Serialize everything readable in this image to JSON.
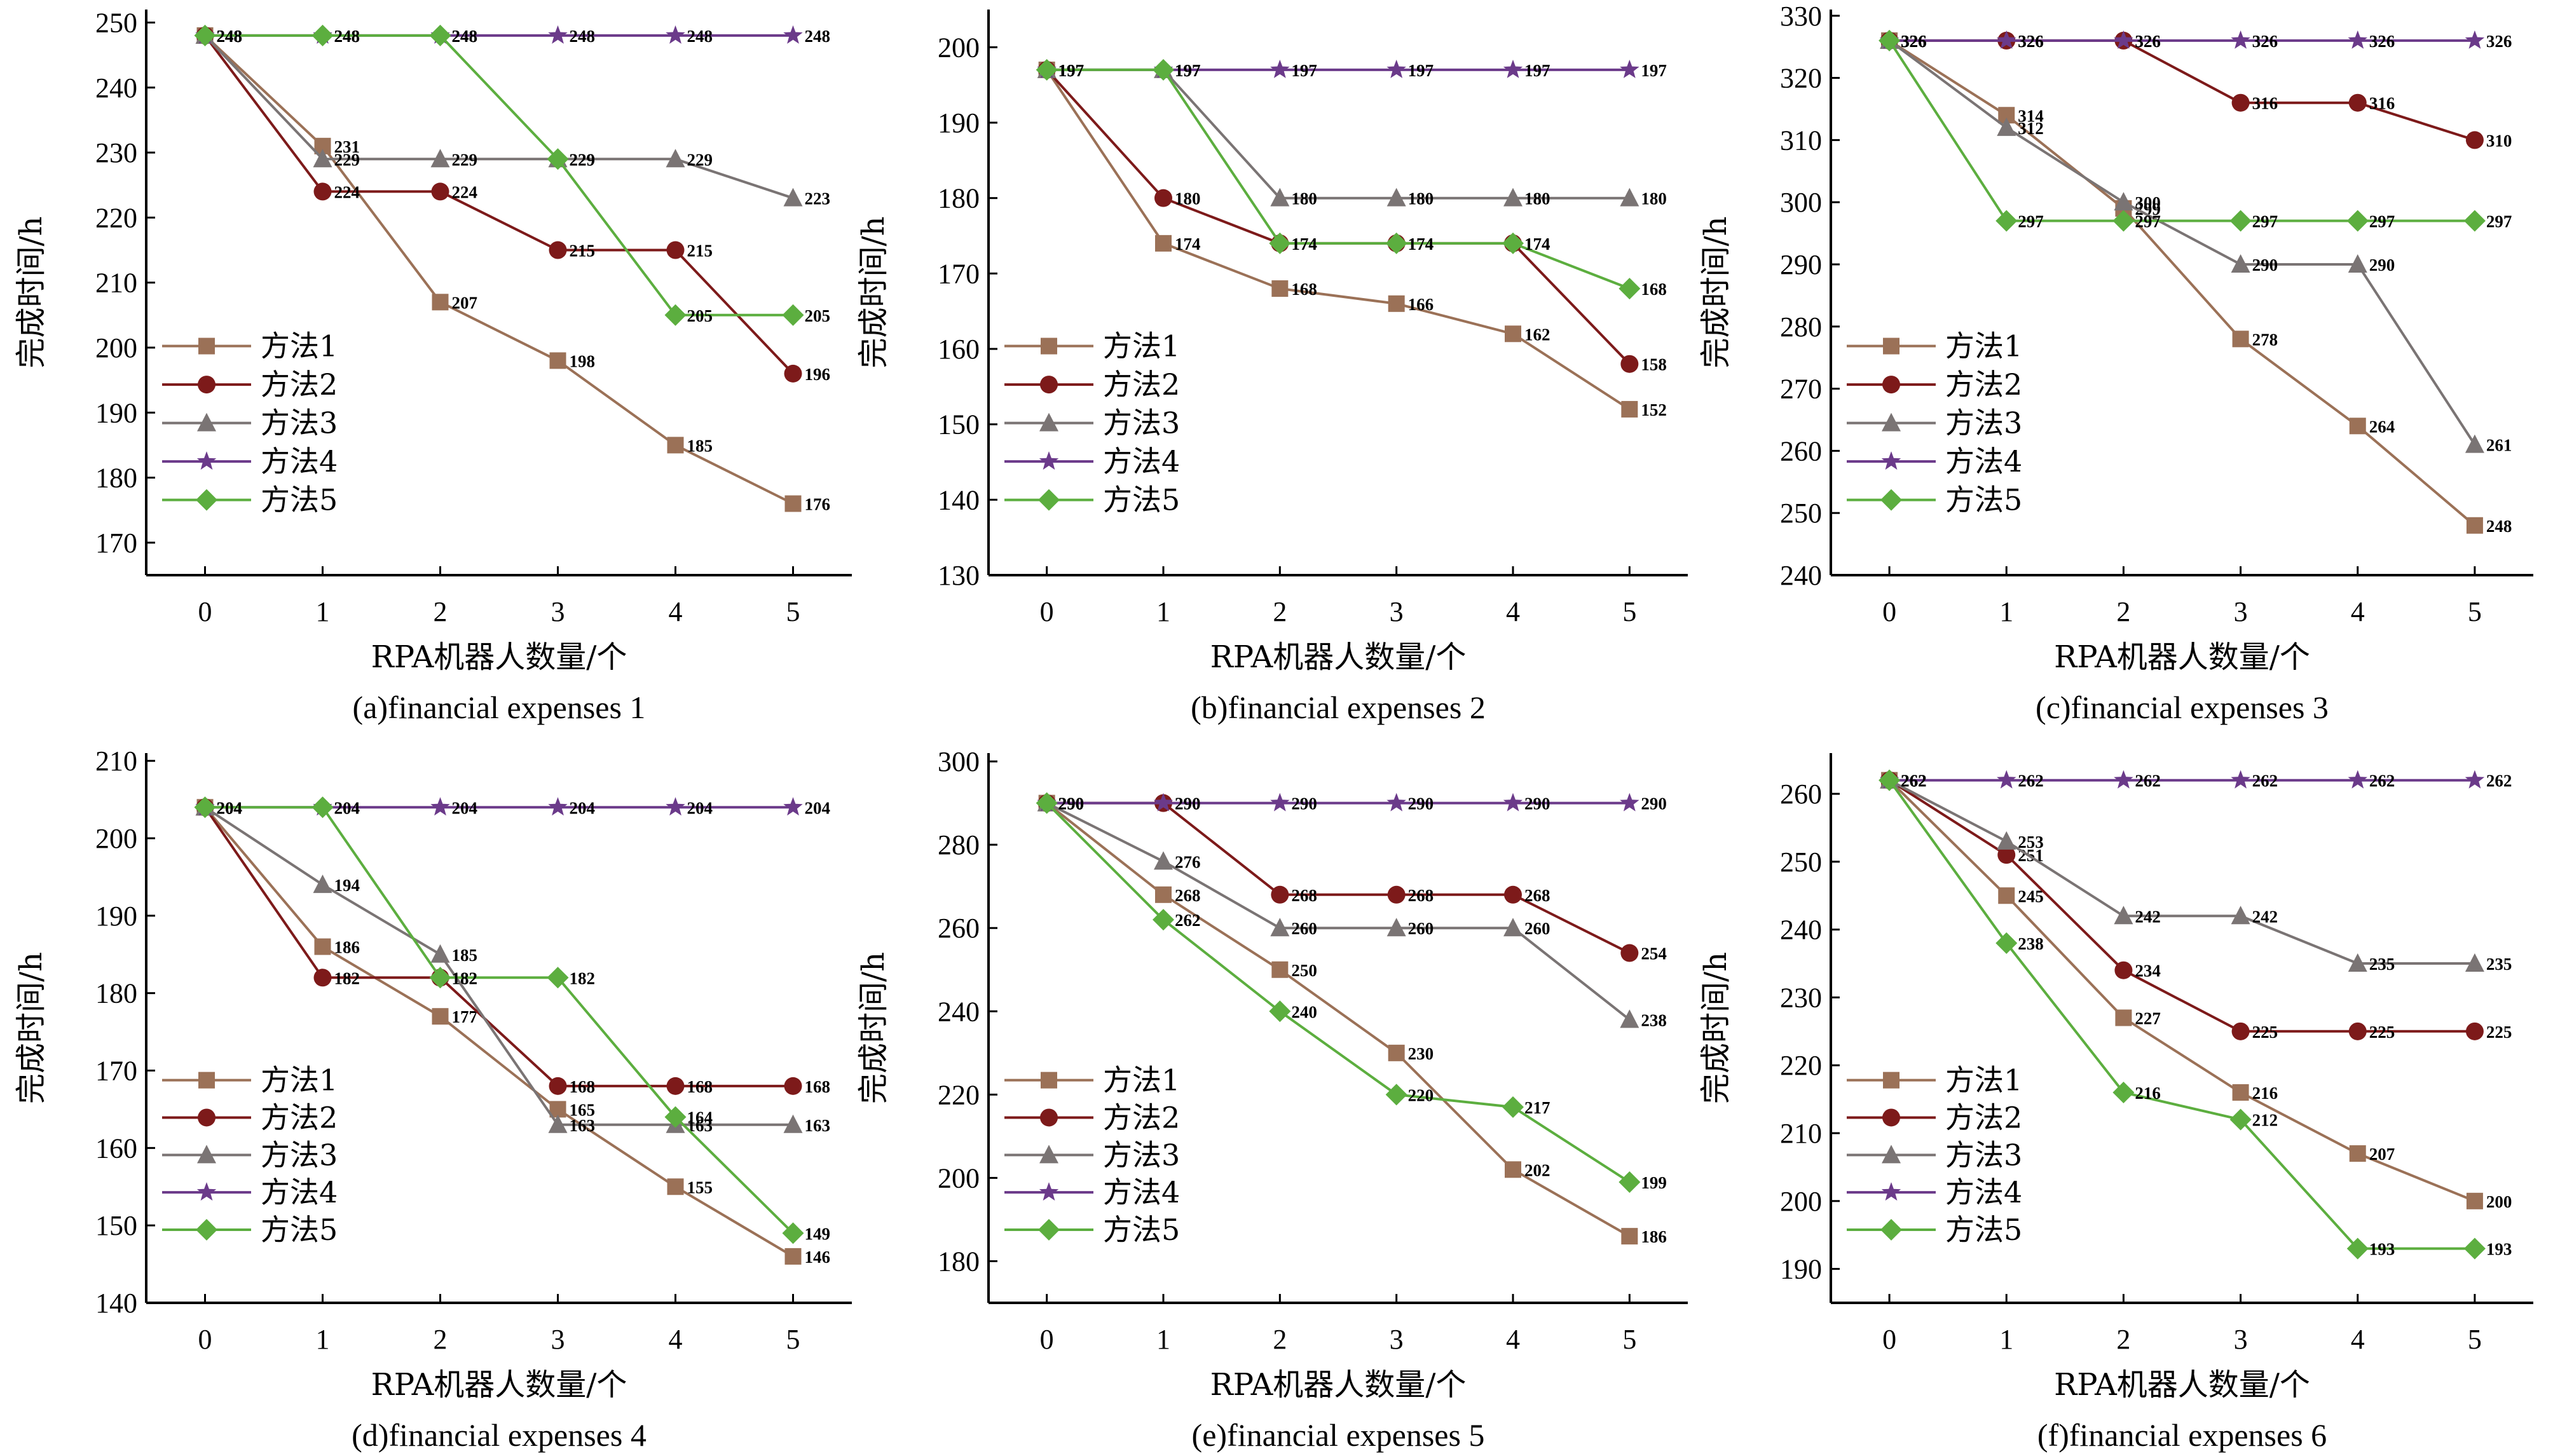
{
  "colors": {
    "method1": "#9b7157",
    "method2": "#7d1a1a",
    "method3": "#7a7474",
    "method4": "#6b3a8a",
    "method5": "#5cae3f"
  },
  "legend_labels": [
    "方法1",
    "方法2",
    "方法3",
    "方法4",
    "方法5"
  ],
  "marker_icons": [
    "square-marker",
    "circle-marker",
    "triangle-marker",
    "star-marker",
    "diamond-marker"
  ],
  "chart_data": [
    {
      "type": "line",
      "caption": "(a)financial expenses 1",
      "xlabel": "RPA机器人数量/个",
      "ylabel": "完成时间/h",
      "x": [
        0,
        1,
        2,
        3,
        4,
        5
      ],
      "ylim": [
        165,
        252
      ],
      "yticks": [
        170,
        180,
        190,
        200,
        210,
        220,
        230,
        240,
        250
      ],
      "legend_position": "bottom-left",
      "series": [
        {
          "name": "方法1",
          "values": [
            248,
            231,
            207,
            198,
            185,
            176
          ]
        },
        {
          "name": "方法2",
          "values": [
            248,
            224,
            224,
            215,
            215,
            196
          ]
        },
        {
          "name": "方法3",
          "values": [
            248,
            229,
            229,
            229,
            229,
            223
          ]
        },
        {
          "name": "方法4",
          "values": [
            248,
            248,
            248,
            248,
            248,
            248
          ]
        },
        {
          "name": "方法5",
          "values": [
            248,
            248,
            248,
            229,
            205,
            205
          ]
        }
      ]
    },
    {
      "type": "line",
      "caption": "(b)financial expenses 2",
      "xlabel": "RPA机器人数量/个",
      "ylabel": "完成时间/h",
      "x": [
        0,
        1,
        2,
        3,
        4,
        5
      ],
      "ylim": [
        130,
        205
      ],
      "yticks": [
        130,
        140,
        150,
        160,
        170,
        180,
        190,
        200
      ],
      "legend_position": "bottom-left",
      "series": [
        {
          "name": "方法1",
          "values": [
            197,
            174,
            168,
            166,
            162,
            152
          ]
        },
        {
          "name": "方法2",
          "values": [
            197,
            180,
            174,
            174,
            174,
            158
          ]
        },
        {
          "name": "方法3",
          "values": [
            197,
            197,
            180,
            180,
            180,
            180
          ]
        },
        {
          "name": "方法4",
          "values": [
            197,
            197,
            197,
            197,
            197,
            197
          ]
        },
        {
          "name": "方法5",
          "values": [
            197,
            197,
            174,
            174,
            174,
            168
          ]
        }
      ]
    },
    {
      "type": "line",
      "caption": "(c)financial expenses 3",
      "xlabel": "RPA机器人数量/个",
      "ylabel": "完成时间/h",
      "x": [
        0,
        1,
        2,
        3,
        4,
        5
      ],
      "ylim": [
        240,
        331
      ],
      "yticks": [
        240,
        250,
        260,
        270,
        280,
        290,
        300,
        310,
        320,
        330
      ],
      "legend_position": "bottom-left",
      "series": [
        {
          "name": "方法1",
          "values": [
            326,
            314,
            299,
            278,
            264,
            248
          ]
        },
        {
          "name": "方法2",
          "values": [
            326,
            326,
            326,
            316,
            316,
            310
          ]
        },
        {
          "name": "方法3",
          "values": [
            326,
            312,
            300,
            290,
            290,
            261
          ]
        },
        {
          "name": "方法4",
          "values": [
            326,
            326,
            326,
            326,
            326,
            326
          ]
        },
        {
          "name": "方法5",
          "values": [
            326,
            297,
            297,
            297,
            297,
            297
          ]
        }
      ]
    },
    {
      "type": "line",
      "caption": "(d)financial expenses 4",
      "xlabel": "RPA机器人数量/个",
      "ylabel": "完成时间/h",
      "x": [
        0,
        1,
        2,
        3,
        4,
        5
      ],
      "ylim": [
        140,
        211
      ],
      "yticks": [
        140,
        150,
        160,
        170,
        180,
        190,
        200,
        210
      ],
      "legend_position": "bottom-left",
      "series": [
        {
          "name": "方法1",
          "values": [
            204,
            186,
            177,
            165,
            155,
            146
          ]
        },
        {
          "name": "方法2",
          "values": [
            204,
            182,
            182,
            168,
            168,
            168
          ]
        },
        {
          "name": "方法3",
          "values": [
            204,
            194,
            185,
            163,
            163,
            163
          ]
        },
        {
          "name": "方法4",
          "values": [
            204,
            204,
            204,
            204,
            204,
            204
          ]
        },
        {
          "name": "方法5",
          "values": [
            204,
            204,
            182,
            182,
            164,
            149
          ]
        }
      ]
    },
    {
      "type": "line",
      "caption": "(e)financial expenses 5",
      "xlabel": "RPA机器人数量/个",
      "ylabel": "完成时间/h",
      "x": [
        0,
        1,
        2,
        3,
        4,
        5
      ],
      "ylim": [
        170,
        302
      ],
      "yticks": [
        180,
        200,
        220,
        240,
        260,
        280,
        300
      ],
      "legend_position": "bottom-left",
      "series": [
        {
          "name": "方法1",
          "values": [
            290,
            268,
            250,
            230,
            202,
            186
          ]
        },
        {
          "name": "方法2",
          "values": [
            290,
            290,
            268,
            268,
            268,
            254
          ]
        },
        {
          "name": "方法3",
          "values": [
            290,
            276,
            260,
            260,
            260,
            238
          ]
        },
        {
          "name": "方法4",
          "values": [
            290,
            290,
            290,
            290,
            290,
            290
          ]
        },
        {
          "name": "方法5",
          "values": [
            290,
            262,
            240,
            220,
            217,
            199
          ]
        }
      ]
    },
    {
      "type": "line",
      "caption": "(f)financial expenses 6",
      "xlabel": "RPA机器人数量/个",
      "ylabel": "完成时间/h",
      "x": [
        0,
        1,
        2,
        3,
        4,
        5
      ],
      "ylim": [
        185,
        266
      ],
      "yticks": [
        190,
        200,
        210,
        220,
        230,
        240,
        250,
        260
      ],
      "legend_position": "bottom-left",
      "series": [
        {
          "name": "方法1",
          "values": [
            262,
            245,
            227,
            216,
            207,
            200
          ]
        },
        {
          "name": "方法2",
          "values": [
            262,
            251,
            234,
            225,
            225,
            225
          ]
        },
        {
          "name": "方法3",
          "values": [
            262,
            253,
            242,
            242,
            235,
            235
          ]
        },
        {
          "name": "方法4",
          "values": [
            262,
            262,
            262,
            262,
            262,
            262
          ]
        },
        {
          "name": "方法5",
          "values": [
            262,
            238,
            216,
            212,
            193,
            193
          ]
        }
      ]
    }
  ]
}
